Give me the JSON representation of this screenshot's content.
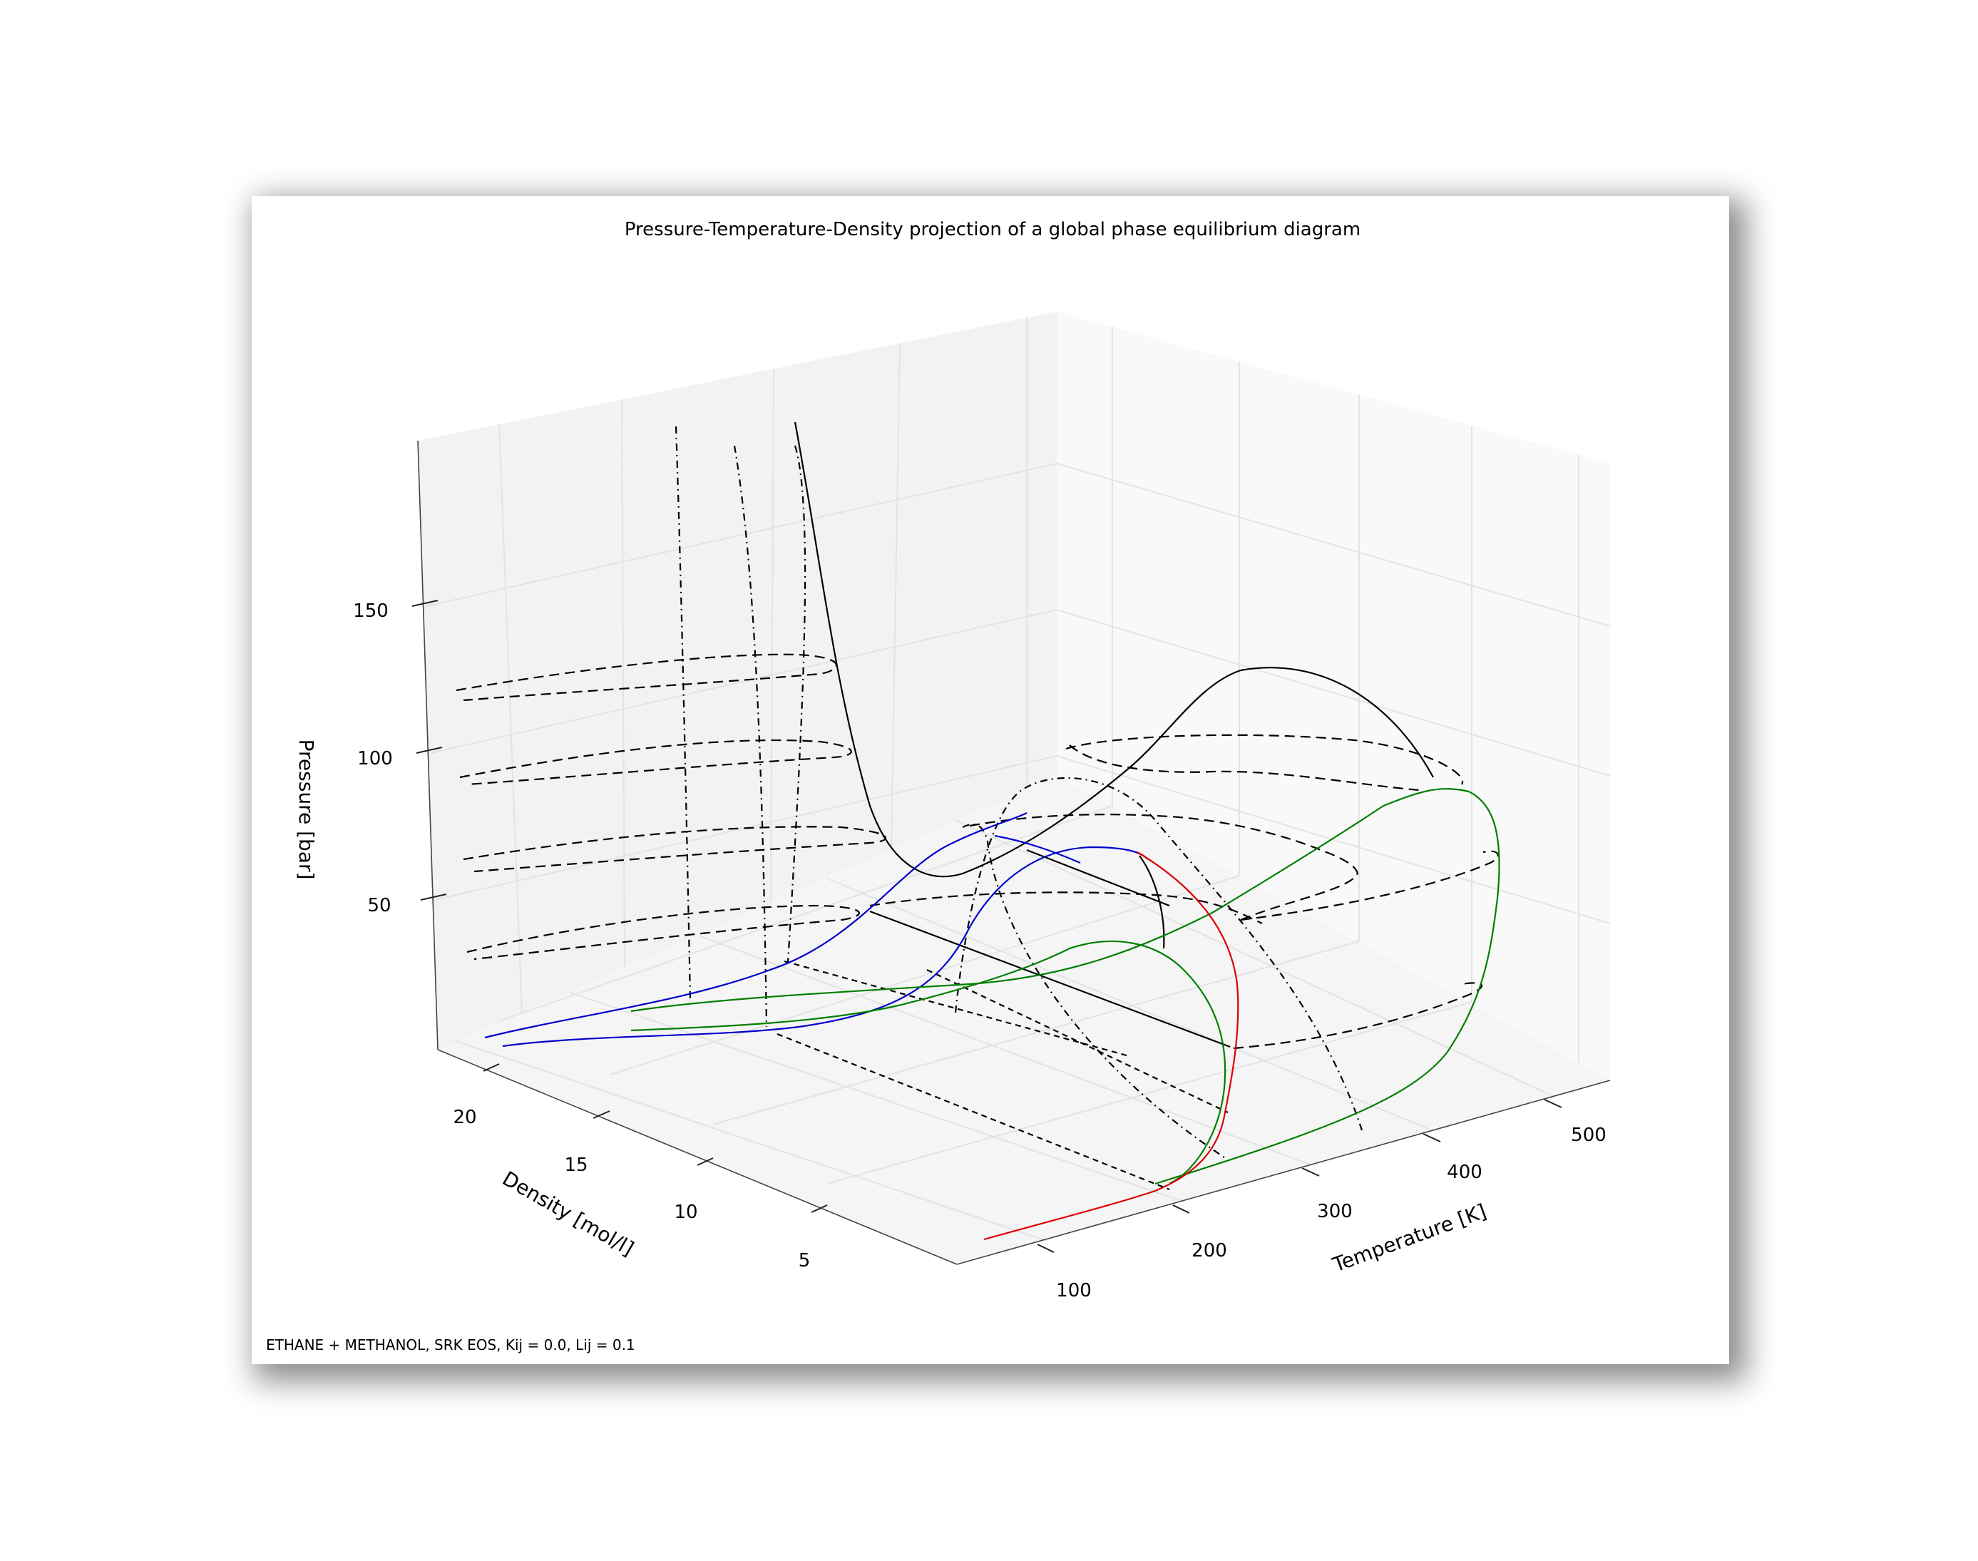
{
  "chart_data": {
    "type": "line",
    "projection": "3d",
    "title": "Pressure-Temperature-Density projection of a global phase equilibrium diagram",
    "footnote": "ETHANE + METHANOL, SRK EOS, Kij = 0.0, Lij = 0.1",
    "axes": {
      "x": {
        "label": "Temperature [K]",
        "ticks": [
          "100",
          "200",
          "300",
          "400",
          "500"
        ]
      },
      "y": {
        "label": "Density [mol/l]",
        "ticks": [
          "20",
          "15",
          "10",
          "5"
        ]
      },
      "z": {
        "label": "Pressure [bar]",
        "ticks": [
          "150",
          "100",
          "50"
        ]
      }
    },
    "grid": true,
    "colors": {
      "black": "#000000",
      "blue": "#0000cc",
      "green": "#007f00",
      "red": "#dd0000",
      "pane_left": "#f2f2f2",
      "pane_right": "#f9f9f9",
      "pane_floor": "#f5f5f5"
    },
    "series": [
      {
        "color": "black",
        "style": "solid"
      },
      {
        "color": "black",
        "style": "dashed"
      },
      {
        "color": "black",
        "style": "dashdot"
      },
      {
        "color": "blue",
        "style": "solid"
      },
      {
        "color": "green",
        "style": "solid"
      },
      {
        "color": "red",
        "style": "solid"
      }
    ]
  }
}
